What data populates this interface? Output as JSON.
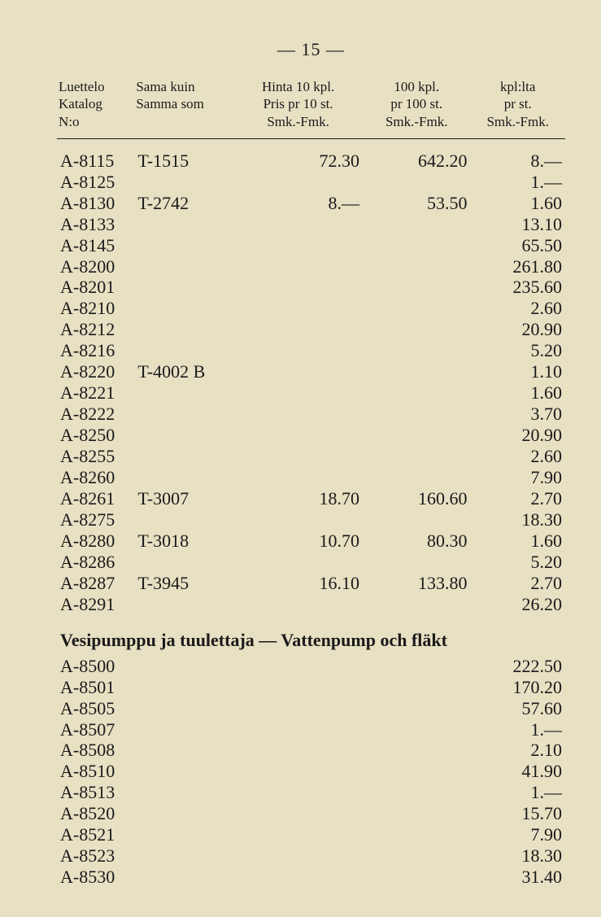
{
  "page_number": "— 15 —",
  "headers": {
    "col1": [
      "Luettelo",
      "Katalog",
      "N:o"
    ],
    "col2": [
      "Sama kuin",
      "Samma som",
      ""
    ],
    "col3": [
      "Hinta 10 kpl.",
      "Pris pr 10 st.",
      "Smk.-Fmk."
    ],
    "col4": [
      "100 kpl.",
      "pr 100 st.",
      "Smk.-Fmk."
    ],
    "col5": [
      "kpl:lta",
      "pr st.",
      "Smk.-Fmk."
    ]
  },
  "section1_rows": [
    {
      "cat": "A-8115",
      "same": "T-1515",
      "p10": "72.30",
      "p100": "642.20",
      "unit": "8.—"
    },
    {
      "cat": "A-8125",
      "same": "",
      "p10": "",
      "p100": "",
      "unit": "1.—"
    },
    {
      "cat": "A-8130",
      "same": "T-2742",
      "p10": "8.—",
      "p100": "53.50",
      "unit": "1.60"
    },
    {
      "cat": "A-8133",
      "same": "",
      "p10": "",
      "p100": "",
      "unit": "13.10"
    },
    {
      "cat": "A-8145",
      "same": "",
      "p10": "",
      "p100": "",
      "unit": "65.50"
    },
    {
      "cat": "A-8200",
      "same": "",
      "p10": "",
      "p100": "",
      "unit": "261.80"
    },
    {
      "cat": "A-8201",
      "same": "",
      "p10": "",
      "p100": "",
      "unit": "235.60"
    },
    {
      "cat": "A-8210",
      "same": "",
      "p10": "",
      "p100": "",
      "unit": "2.60"
    },
    {
      "cat": "A-8212",
      "same": "",
      "p10": "",
      "p100": "",
      "unit": "20.90"
    },
    {
      "cat": "A-8216",
      "same": "",
      "p10": "",
      "p100": "",
      "unit": "5.20"
    },
    {
      "cat": "A-8220",
      "same": "T-4002 B",
      "p10": "",
      "p100": "",
      "unit": "1.10"
    },
    {
      "cat": "A-8221",
      "same": "",
      "p10": "",
      "p100": "",
      "unit": "1.60"
    },
    {
      "cat": "A-8222",
      "same": "",
      "p10": "",
      "p100": "",
      "unit": "3.70"
    },
    {
      "cat": "A-8250",
      "same": "",
      "p10": "",
      "p100": "",
      "unit": "20.90"
    },
    {
      "cat": "A-8255",
      "same": "",
      "p10": "",
      "p100": "",
      "unit": "2.60"
    },
    {
      "cat": "A-8260",
      "same": "",
      "p10": "",
      "p100": "",
      "unit": "7.90"
    },
    {
      "cat": "A-8261",
      "same": "T-3007",
      "p10": "18.70",
      "p100": "160.60",
      "unit": "2.70"
    },
    {
      "cat": "A-8275",
      "same": "",
      "p10": "",
      "p100": "",
      "unit": "18.30"
    },
    {
      "cat": "A-8280",
      "same": "T-3018",
      "p10": "10.70",
      "p100": "80.30",
      "unit": "1.60"
    },
    {
      "cat": "A-8286",
      "same": "",
      "p10": "",
      "p100": "",
      "unit": "5.20"
    },
    {
      "cat": "A-8287",
      "same": "T-3945",
      "p10": "16.10",
      "p100": "133.80",
      "unit": "2.70"
    },
    {
      "cat": "A-8291",
      "same": "",
      "p10": "",
      "p100": "",
      "unit": "26.20"
    }
  ],
  "section2_heading": "Vesipumppu ja tuulettaja — Vattenpump och fläkt",
  "section2_rows": [
    {
      "cat": "A-8500",
      "same": "",
      "p10": "",
      "p100": "",
      "unit": "222.50"
    },
    {
      "cat": "A-8501",
      "same": "",
      "p10": "",
      "p100": "",
      "unit": "170.20"
    },
    {
      "cat": "A-8505",
      "same": "",
      "p10": "",
      "p100": "",
      "unit": "57.60"
    },
    {
      "cat": "A-8507",
      "same": "",
      "p10": "",
      "p100": "",
      "unit": "1.—"
    },
    {
      "cat": "A-8508",
      "same": "",
      "p10": "",
      "p100": "",
      "unit": "2.10"
    },
    {
      "cat": "A-8510",
      "same": "",
      "p10": "",
      "p100": "",
      "unit": "41.90"
    },
    {
      "cat": "A-8513",
      "same": "",
      "p10": "",
      "p100": "",
      "unit": "1.—"
    },
    {
      "cat": "A-8520",
      "same": "",
      "p10": "",
      "p100": "",
      "unit": "15.70"
    },
    {
      "cat": "A-8521",
      "same": "",
      "p10": "",
      "p100": "",
      "unit": "7.90"
    },
    {
      "cat": "A-8523",
      "same": "",
      "p10": "",
      "p100": "",
      "unit": "18.30"
    },
    {
      "cat": "A-8530",
      "same": "",
      "p10": "",
      "p100": "",
      "unit": "31.40"
    }
  ]
}
